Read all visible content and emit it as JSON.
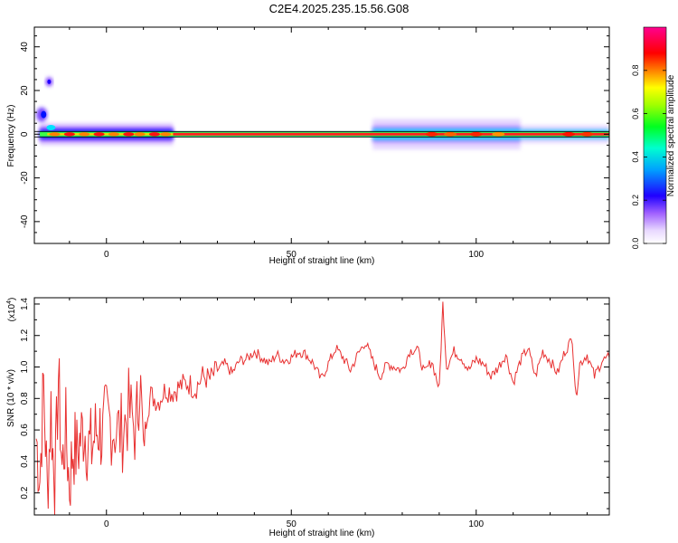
{
  "title": "C2E4.2025.235.15.56.G08",
  "chart_data": [
    {
      "type": "heatmap",
      "xlabel": "Height of straight line (km)",
      "ylabel": "Frequency (Hz)",
      "xlim": [
        -19.5,
        136
      ],
      "ylim": [
        -50,
        49
      ],
      "xticks": [
        0,
        50,
        100
      ],
      "yticks": [
        -40,
        -20,
        0,
        20,
        40
      ],
      "colorbar": {
        "label": "Normalized spectral amplitude",
        "range": [
          0.0,
          1.0
        ],
        "ticks": [
          "0.0",
          "0.2",
          "0.4",
          "0.6",
          "0.8"
        ],
        "colormap": [
          "#ffffff",
          "#d8b8ff",
          "#8000ff",
          "#0000ff",
          "#00d8ff",
          "#00ff40",
          "#ffff00",
          "#ff8000",
          "#ff0000",
          "#ff00a0"
        ]
      },
      "grid": false,
      "description_points": {
        "main_line_frequency": 0,
        "strong_bands_x": [
          [
            -16,
            18
          ],
          [
            18,
            72
          ],
          [
            72,
            112
          ],
          [
            112,
            136
          ]
        ],
        "isolated_blobs": [
          {
            "x": -15.5,
            "y": 24,
            "amp": 0.25
          },
          {
            "x": -17.5,
            "y": 10,
            "amp": 0.2
          }
        ]
      }
    },
    {
      "type": "line",
      "xlabel": "Height of straight line (km)",
      "ylabel": "SNR (10 * v/v)",
      "y_multiplier": "(x10",
      "y_multiplier_exp": "4",
      "y_multiplier_end": ")",
      "xlim": [
        -19.5,
        136
      ],
      "ylim": [
        0.06,
        1.44
      ],
      "xticks": [
        0,
        50,
        100
      ],
      "yticks": [
        "0.2",
        "0.4",
        "0.6",
        "0.8",
        "1.0",
        "1.2",
        "1.4"
      ],
      "ytick_values": [
        0.2,
        0.4,
        0.6,
        0.8,
        1.0,
        1.2,
        1.4
      ],
      "color": "#e83030",
      "grid": false,
      "series": [
        {
          "x": [
            -19,
            -18,
            -17,
            -16,
            -15,
            -14,
            -13,
            -12,
            -11,
            -10,
            -9,
            -8,
            -7,
            -6,
            -5,
            -4,
            -3,
            -2,
            -1,
            0,
            2,
            4,
            6,
            8,
            9,
            10,
            11,
            12,
            14,
            16,
            18,
            20,
            22,
            24,
            26,
            28,
            30,
            32,
            34,
            36,
            38,
            40,
            42,
            44,
            46,
            48,
            50,
            52,
            54,
            56,
            58,
            60,
            62,
            64,
            66,
            68,
            70,
            72,
            74,
            76,
            78,
            80,
            82,
            84,
            86,
            88,
            90,
            91,
            92,
            94,
            96,
            98,
            100,
            102,
            104,
            106,
            108,
            110,
            112,
            114,
            116,
            118,
            120,
            122,
            124,
            126,
            127,
            128,
            130,
            132,
            134,
            136
          ],
          "y": [
            0.55,
            0.3,
            0.9,
            0.2,
            0.75,
            0.15,
            0.95,
            0.35,
            0.6,
            0.25,
            0.5,
            0.45,
            0.55,
            0.62,
            0.5,
            0.48,
            0.58,
            0.62,
            0.55,
            0.68,
            0.62,
            0.58,
            0.72,
            0.6,
            0.95,
            0.48,
            0.72,
            0.82,
            0.78,
            0.86,
            0.84,
            0.88,
            0.9,
            0.86,
            0.94,
            0.92,
            0.98,
            1.02,
            0.96,
            1.04,
            1.05,
            1.1,
            1.06,
            1.02,
            1.08,
            1.04,
            1.06,
            1.1,
            1.08,
            1.02,
            0.92,
            1.02,
            1.12,
            1.06,
            0.98,
            1.08,
            1.16,
            1.04,
            0.94,
            1.02,
            1.0,
            0.98,
            1.1,
            1.12,
            0.96,
            1.04,
            0.86,
            1.4,
            1.0,
            1.1,
            1.06,
            0.98,
            1.05,
            1.02,
            0.94,
            1.0,
            1.08,
            0.9,
            1.04,
            1.12,
            0.94,
            1.1,
            1.04,
            0.96,
            1.1,
            1.18,
            0.8,
            1.02,
            1.08,
            0.94,
            1.04,
            1.06
          ]
        }
      ]
    }
  ]
}
